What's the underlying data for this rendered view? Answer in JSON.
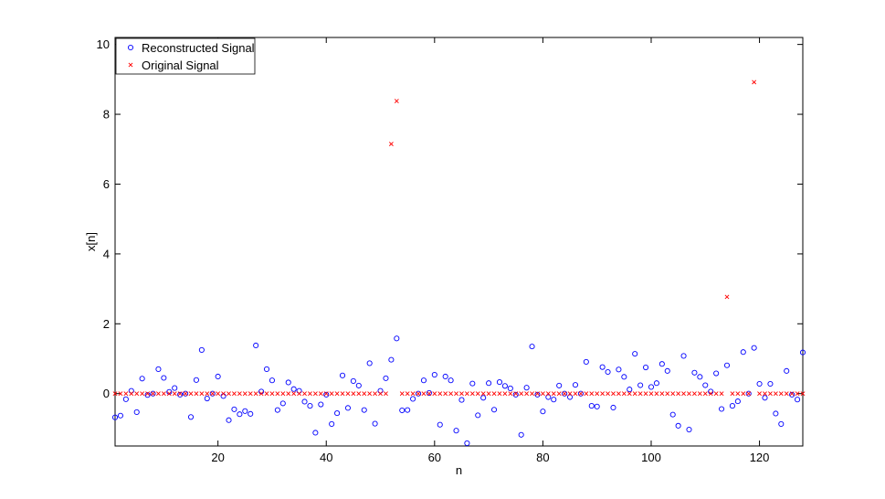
{
  "chart_data": {
    "type": "scatter",
    "xlabel": "n",
    "ylabel": "x[n]",
    "xlim": [
      1,
      128
    ],
    "ylim": [
      -1.5,
      10.2
    ],
    "xticks": [
      20,
      40,
      60,
      80,
      100,
      120
    ],
    "yticks": [
      0,
      2,
      4,
      6,
      8,
      10
    ],
    "grid": false,
    "legend_position": "top-left",
    "series": [
      {
        "name": "Reconstructed Signal",
        "marker": "circle",
        "color": "#0000ff",
        "x": [
          1,
          2,
          3,
          4,
          5,
          6,
          7,
          8,
          9,
          10,
          11,
          12,
          13,
          14,
          15,
          16,
          17,
          18,
          19,
          20,
          21,
          22,
          23,
          24,
          25,
          26,
          27,
          28,
          29,
          30,
          31,
          32,
          33,
          34,
          35,
          36,
          37,
          38,
          39,
          40,
          41,
          42,
          43,
          44,
          45,
          46,
          47,
          48,
          49,
          50,
          51,
          52,
          53,
          54,
          55,
          56,
          57,
          58,
          59,
          60,
          61,
          62,
          63,
          64,
          65,
          66,
          67,
          68,
          69,
          70,
          71,
          72,
          73,
          74,
          75,
          76,
          77,
          78,
          79,
          80,
          81,
          82,
          83,
          84,
          85,
          86,
          87,
          88,
          89,
          90,
          91,
          92,
          93,
          94,
          95,
          96,
          97,
          98,
          99,
          100,
          101,
          102,
          103,
          104,
          105,
          106,
          107,
          108,
          109,
          110,
          111,
          112,
          113,
          114,
          115,
          116,
          117,
          118,
          119,
          120,
          121,
          122,
          123,
          124,
          125,
          126,
          127,
          128
        ],
        "y": [
          -0.68,
          -0.63,
          -0.16,
          0.08,
          -0.53,
          0.43,
          -0.04,
          0.0,
          0.7,
          0.45,
          0.05,
          0.16,
          -0.03,
          0.0,
          -0.67,
          0.39,
          1.25,
          -0.14,
          0.0,
          0.49,
          -0.07,
          -0.76,
          -0.45,
          -0.59,
          -0.5,
          -0.58,
          1.38,
          0.06,
          0.7,
          0.38,
          -0.47,
          -0.28,
          0.32,
          0.13,
          0.08,
          -0.23,
          -0.35,
          -1.12,
          -0.31,
          -0.03,
          -0.87,
          -0.56,
          0.52,
          -0.41,
          0.36,
          0.23,
          -0.47,
          0.87,
          -0.86,
          0.08,
          0.44,
          0.97,
          1.58,
          -0.48,
          -0.47,
          -0.15,
          0.0,
          0.38,
          0.02,
          0.54,
          -0.89,
          0.49,
          0.38,
          -1.06,
          -0.18,
          -1.42,
          0.29,
          -0.62,
          -0.12,
          0.3,
          -0.46,
          0.33,
          0.22,
          0.15,
          -0.03,
          -1.18,
          0.17,
          1.35,
          -0.03,
          -0.51,
          -0.1,
          -0.17,
          0.23,
          0.0,
          -0.1,
          0.25,
          0.0,
          0.91,
          -0.35,
          -0.37,
          0.76,
          0.62,
          -0.4,
          0.69,
          0.48,
          0.12,
          1.14,
          0.24,
          0.75,
          0.19,
          0.3,
          0.85,
          0.65,
          -0.6,
          -0.92,
          1.08,
          -1.03,
          0.6,
          0.48,
          0.24,
          0.06,
          0.58,
          -0.44,
          0.81,
          -0.35,
          -0.22,
          1.19,
          0.0,
          1.31,
          0.28,
          -0.12,
          0.28,
          -0.57,
          -0.87,
          0.65,
          -0.03,
          -0.17,
          1.18
        ]
      },
      {
        "name": "Original Signal",
        "marker": "x",
        "color": "#ff0000",
        "x": [
          1,
          2,
          3,
          4,
          5,
          6,
          7,
          8,
          9,
          10,
          11,
          12,
          13,
          14,
          15,
          16,
          17,
          18,
          19,
          20,
          21,
          22,
          23,
          24,
          25,
          26,
          27,
          28,
          29,
          30,
          31,
          32,
          33,
          34,
          35,
          36,
          37,
          38,
          39,
          40,
          41,
          42,
          43,
          44,
          45,
          46,
          47,
          48,
          49,
          50,
          51,
          52,
          53,
          54,
          55,
          56,
          57,
          58,
          59,
          60,
          61,
          62,
          63,
          64,
          65,
          66,
          67,
          68,
          69,
          70,
          71,
          72,
          73,
          74,
          75,
          76,
          77,
          78,
          79,
          80,
          81,
          82,
          83,
          84,
          85,
          86,
          87,
          88,
          89,
          90,
          91,
          92,
          93,
          94,
          95,
          96,
          97,
          98,
          99,
          100,
          101,
          102,
          103,
          104,
          105,
          106,
          107,
          108,
          109,
          110,
          111,
          112,
          113,
          114,
          115,
          116,
          117,
          118,
          119,
          120,
          121,
          122,
          123,
          124,
          125,
          126,
          127,
          128
        ],
        "y": [
          0,
          0,
          0,
          0,
          0,
          0,
          0,
          0,
          0,
          0,
          0,
          0,
          0,
          0,
          0,
          0,
          0,
          0,
          0,
          0,
          0,
          0,
          0,
          0,
          0,
          0,
          0,
          0,
          0,
          0,
          0,
          0,
          0,
          0,
          0,
          0,
          0,
          0,
          0,
          0,
          0,
          0,
          0,
          0,
          0,
          0,
          0,
          0,
          0,
          0,
          0,
          7.15,
          8.38,
          0,
          0,
          0,
          0,
          0,
          0,
          0,
          0,
          0,
          0,
          0,
          0,
          0,
          0,
          0,
          0,
          0,
          0,
          0,
          0,
          0,
          0,
          0,
          0,
          0,
          0,
          0,
          0,
          0,
          0,
          0,
          0,
          0,
          0,
          0,
          0,
          0,
          0,
          0,
          0,
          0,
          0,
          0,
          0,
          0,
          0,
          0,
          0,
          0,
          0,
          0,
          0,
          0,
          0,
          0,
          0,
          0,
          0,
          0,
          0,
          2.77,
          0,
          0,
          0,
          0,
          8.92,
          0,
          0,
          0,
          0,
          0,
          0,
          0,
          0,
          0
        ]
      }
    ]
  }
}
